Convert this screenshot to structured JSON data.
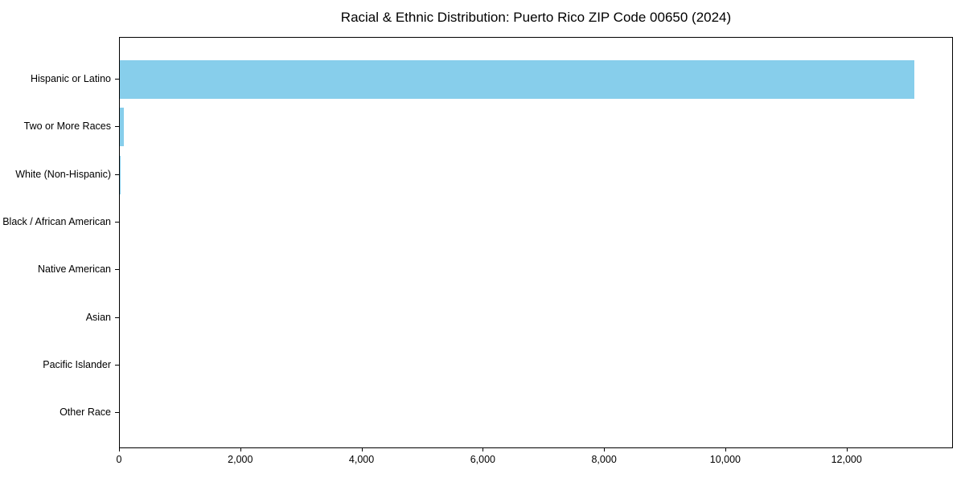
{
  "chart_data": {
    "type": "bar",
    "orientation": "horizontal",
    "title": "Racial & Ethnic Distribution: Puerto Rico ZIP Code 00650 (2024)",
    "categories": [
      "Hispanic or Latino",
      "Two or More Races",
      "White (Non-Hispanic)",
      "Black / African American",
      "Native American",
      "Asian",
      "Pacific Islander",
      "Other Race"
    ],
    "values": [
      13100,
      60,
      12,
      0,
      0,
      0,
      0,
      0
    ],
    "xlabel": "",
    "ylabel": "",
    "xlim": [
      0,
      13755
    ],
    "x_ticks": [
      0,
      2000,
      4000,
      6000,
      8000,
      10000,
      12000
    ],
    "x_tick_labels": [
      "0",
      "2,000",
      "4,000",
      "6,000",
      "8,000",
      "10,000",
      "12,000"
    ],
    "bar_color": "#87CEEB",
    "axis_color": "#000000",
    "background_color": "#ffffff",
    "grid": false,
    "legend": "none"
  }
}
